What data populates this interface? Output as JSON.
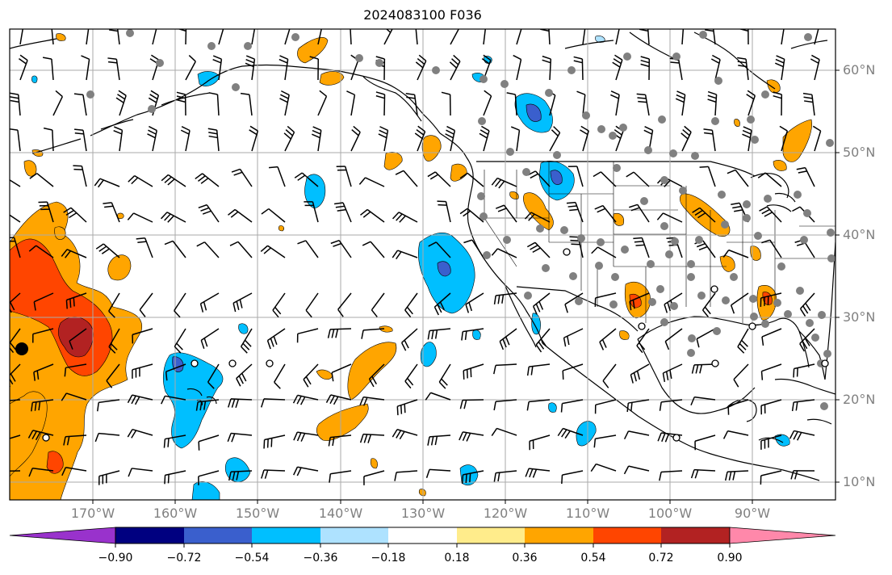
{
  "title": "2024083100 F036",
  "lat_labels": [
    "60°N",
    "50°N",
    "40°N",
    "30°N",
    "20°N",
    "10°N"
  ],
  "lon_labels": [
    "170°W",
    "160°W",
    "150°W",
    "140°W",
    "130°W",
    "120°W",
    "110°W",
    "100°W",
    "90°W"
  ],
  "colorbar": {
    "tick_labels": [
      "−0.90",
      "−0.72",
      "−0.54",
      "−0.36",
      "−0.18",
      "0.18",
      "0.36",
      "0.54",
      "0.72",
      "0.90"
    ],
    "colors": [
      "#9932cc",
      "#000080",
      "#3a5fcd",
      "#00bfff",
      "#aee2ff",
      "#ffffff",
      "#ffec8b",
      "#ffa500",
      "#ff4500",
      "#b22222",
      "#ff88aa"
    ]
  },
  "palette": {
    "land_outline": "#000000",
    "grid": "#aaaaaa",
    "station_fill": "#808080"
  }
}
